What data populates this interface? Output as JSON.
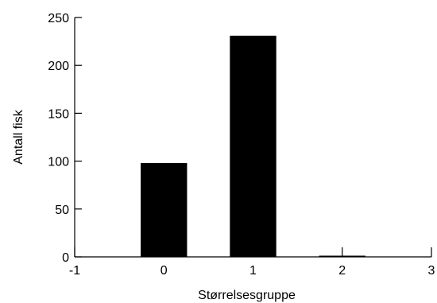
{
  "chart_data": {
    "type": "bar",
    "xlabel": "Størrelsesgruppe",
    "ylabel": "Antall fisk",
    "xlim": [
      -1,
      3
    ],
    "ylim": [
      0,
      250
    ],
    "x_ticks": [
      -1,
      0,
      1,
      2,
      3
    ],
    "y_ticks": [
      0,
      50,
      100,
      150,
      200,
      250
    ],
    "categories": [
      0,
      1,
      2
    ],
    "values": [
      98,
      231,
      1
    ],
    "bar_color": "#000000",
    "grid": false,
    "legend": "none"
  }
}
